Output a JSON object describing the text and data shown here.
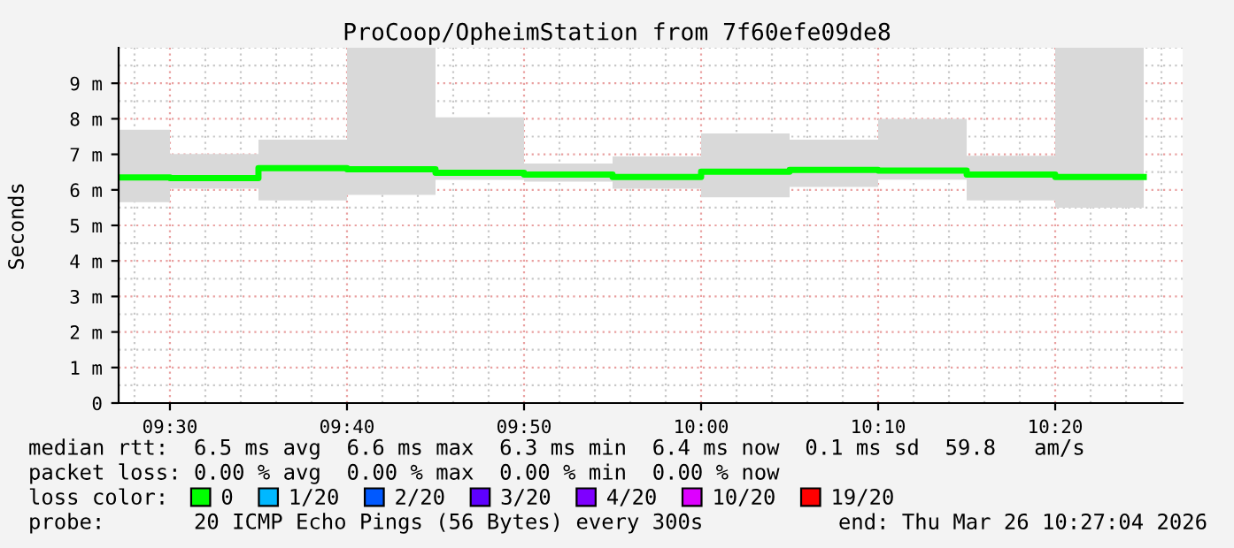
{
  "chart_data": {
    "type": "step",
    "title": "ProCoop/OpheimStation from 7f60efe09de8",
    "ylabel": "Seconds",
    "x": [
      9.5,
      9.583333,
      9.666667,
      9.75,
      9.833333,
      9.916667,
      10.0,
      10.083333,
      10.166667,
      10.25,
      10.333333,
      10.416667
    ],
    "series": [
      {
        "name": "0",
        "color": "#00ff00",
        "values": [
          6.35,
          6.33,
          6.61,
          6.58,
          6.48,
          6.43,
          6.36,
          6.51,
          6.56,
          6.54,
          6.43,
          6.36
        ],
        "lower": [
          5.65,
          6.03,
          5.7,
          5.86,
          6.28,
          6.23,
          6.03,
          5.79,
          6.08,
          6.29,
          5.7,
          5.5
        ],
        "upper": [
          7.69,
          7.01,
          7.41,
          10.0,
          8.04,
          6.74,
          6.94,
          7.59,
          7.41,
          8.0,
          6.96,
          10.0
        ]
      },
      {
        "name": "1/20",
        "color": "#00b8ff",
        "values": [
          null,
          null,
          null,
          null,
          null,
          null,
          null,
          null,
          null,
          null,
          null,
          null
        ]
      },
      {
        "name": "2/20",
        "color": "#0059ff",
        "values": [
          null,
          null,
          null,
          null,
          null,
          null,
          null,
          null,
          null,
          null,
          null,
          null
        ]
      },
      {
        "name": "3/20",
        "color": "#5e00ff",
        "values": [
          null,
          null,
          null,
          null,
          null,
          null,
          null,
          null,
          null,
          null,
          null,
          null
        ]
      },
      {
        "name": "4/20",
        "color": "#7e00ff",
        "values": [
          null,
          null,
          null,
          null,
          null,
          null,
          null,
          null,
          null,
          null,
          null,
          null
        ]
      },
      {
        "name": "10/20",
        "color": "#dd00ff",
        "values": [
          null,
          null,
          null,
          null,
          null,
          null,
          null,
          null,
          null,
          null,
          null,
          null
        ]
      },
      {
        "name": "19/20",
        "color": "#ff0000",
        "values": [
          null,
          null,
          null,
          null,
          null,
          null,
          null,
          null,
          null,
          null,
          null,
          null
        ]
      }
    ],
    "legend_title": "loss color:",
    "legend": "bottom",
    "xlim": [
      9.4517,
      10.4533
    ],
    "xticks": [
      {
        "value": 9.5,
        "label": "09:30"
      },
      {
        "value": 9.666667,
        "label": "09:40"
      },
      {
        "value": 9.833333,
        "label": "09:50"
      },
      {
        "value": 10.0,
        "label": "10:00"
      },
      {
        "value": 10.166667,
        "label": "10:10"
      },
      {
        "value": 10.333333,
        "label": "10:20"
      }
    ],
    "ylim": [
      0,
      10
    ],
    "yticks": [
      0,
      {
        "value": 1,
        "label": "1 m"
      },
      {
        "value": 2,
        "label": "2 m"
      },
      {
        "value": 3,
        "label": "3 m"
      },
      {
        "value": 4,
        "label": "4 m"
      },
      {
        "value": 5,
        "label": "5 m"
      },
      {
        "value": 6,
        "label": "6 m"
      },
      {
        "value": 7,
        "label": "7 m"
      },
      {
        "value": 8,
        "label": "8 m"
      },
      {
        "value": 9,
        "label": "9 m"
      }
    ],
    "grid": true,
    "annotations": [
      "median rtt:  6.5 ms avg  6.6 ms max  6.3 ms min  6.4 ms now  0.1 ms sd  59.8   am/s",
      "packet loss: 0.00 % avg  0.00 % max  0.00 % min  0.00 % now",
      "probe:       20 ICMP Echo Pings (56 Bytes) every 300s",
      "end: Thu Mar 26 10:27:04 2026"
    ]
  }
}
